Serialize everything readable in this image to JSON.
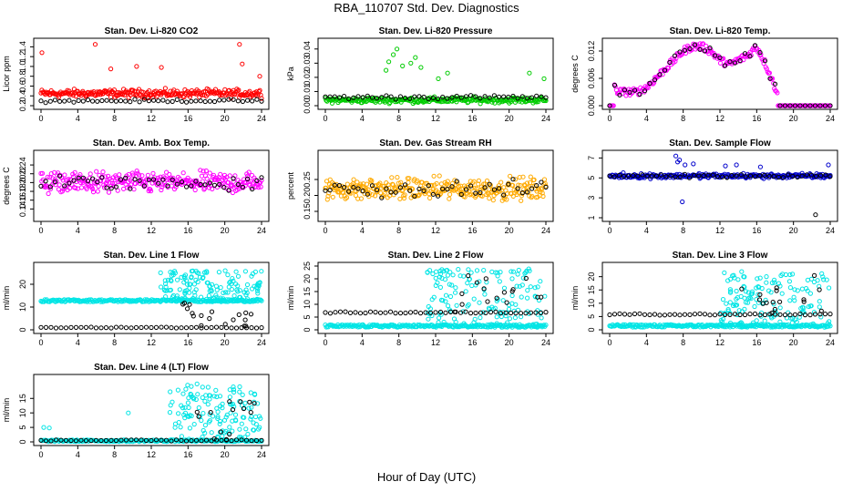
{
  "title": "RBA_110707  Std. Dev. Diagnostics",
  "xlabel": "Hour of Day (UTC)",
  "colors": {
    "red": "#ff0000",
    "green": "#00cc00",
    "magenta": "#ff00ff",
    "orange": "#ffaa00",
    "blue": "#0000cc",
    "cyan": "#00e5e5",
    "black": "#000000"
  },
  "chart_data": [
    {
      "type": "scatter",
      "title": "Stan. Dev. Li-820 CO2",
      "ylabel": "Licor ppm",
      "xlim": [
        0,
        24
      ],
      "ylim": [
        0.2,
        1.5
      ],
      "xticks": [
        "0",
        "4",
        "8",
        "12",
        "16",
        "20",
        "24"
      ],
      "yticks": [
        "0.2",
        "0.4",
        "0.6",
        "0.8",
        "1.0",
        "1.2",
        "1.4"
      ],
      "series": [
        {
          "name": "all",
          "color": "#ff0000",
          "model": "noisy",
          "base": 0.45,
          "spread": 0.12,
          "n": 260,
          "x": [
            0.1,
            5.9,
            7.6,
            10.4,
            13.1,
            21.6,
            21.9,
            23.8
          ],
          "y": [
            1.28,
            1.45,
            0.95,
            1.0,
            0.98,
            1.45,
            1.05,
            0.8
          ]
        },
        {
          "name": "hourly",
          "color": "#000000",
          "model": "noisy",
          "base": 0.3,
          "spread": 0.04,
          "n": 48
        }
      ]
    },
    {
      "type": "scatter",
      "title": "Stan. Dev. Li-820 Pressure",
      "ylabel": "kPa",
      "xlim": [
        0,
        24
      ],
      "ylim": [
        0,
        0.045
      ],
      "xticks": [
        "0",
        "4",
        "8",
        "12",
        "16",
        "20",
        "24"
      ],
      "yticks": [
        "0.00",
        "0.01",
        "0.02",
        "0.03",
        "0.04"
      ],
      "series": [
        {
          "name": "all",
          "color": "#00cc00",
          "model": "noisy",
          "base": 0.004,
          "spread": 0.003,
          "n": 260,
          "x": [
            6.6,
            6.9,
            7.4,
            7.8,
            8.4,
            9.3,
            9.8,
            10.4,
            12.3,
            13.3,
            22.2,
            23.8
          ],
          "y": [
            0.025,
            0.031,
            0.036,
            0.04,
            0.028,
            0.03,
            0.034,
            0.027,
            0.019,
            0.023,
            0.023,
            0.019
          ]
        },
        {
          "name": "hourly",
          "color": "#000000",
          "model": "noisy",
          "base": 0.006,
          "spread": 0.002,
          "n": 48
        }
      ]
    },
    {
      "type": "scatter",
      "title": "Stan. Dev. Li-820 Temp.",
      "ylabel": "degrees C",
      "xlim": [
        0,
        24
      ],
      "ylim": [
        0,
        0.014
      ],
      "xticks": [
        "0",
        "4",
        "8",
        "12",
        "16",
        "20",
        "24"
      ],
      "yticks": [
        "0.000",
        "0.006",
        "0.012"
      ],
      "series": [
        {
          "name": "all",
          "color": "#ff00ff",
          "model": "hump",
          "n": 230,
          "x": [
            0.5,
            1.0,
            2.0,
            3.0,
            4.0,
            5.0,
            6.0,
            7.0,
            8.0,
            9.0,
            10.0,
            11.0,
            12.0,
            13.0,
            14.0,
            15.0,
            16.0,
            17.0,
            17.6,
            18.0,
            18.3
          ],
          "y": [
            0.004,
            0.003,
            0.003,
            0.003,
            0.004,
            0.006,
            0.008,
            0.01,
            0.012,
            0.013,
            0.013,
            0.012,
            0.01,
            0.009,
            0.01,
            0.011,
            0.013,
            0.009,
            0.006,
            0.004,
            0.003
          ]
        },
        {
          "name": "hourly",
          "color": "#000000",
          "model": "hump",
          "n": 45
        }
      ]
    },
    {
      "type": "scatter",
      "title": "Stan. Dev. Amb. Box Temp.",
      "ylabel": "degrees C",
      "xlim": [
        0,
        24
      ],
      "ylim": [
        0.12,
        0.265
      ],
      "xticks": [
        "0",
        "4",
        "8",
        "12",
        "16",
        "20",
        "24"
      ],
      "yticks": [
        "0.14",
        "0.16",
        "0.18",
        "0.20",
        "0.22",
        "0.24"
      ],
      "series": [
        {
          "name": "all",
          "color": "#ff00ff",
          "model": "noisy",
          "base": 0.2,
          "spread": 0.035,
          "n": 300
        },
        {
          "name": "hourly",
          "color": "#000000",
          "model": "noisy",
          "base": 0.2,
          "spread": 0.025,
          "n": 48
        }
      ]
    },
    {
      "type": "scatter",
      "title": "Stan. Dev. Gas Stream RH",
      "ylabel": "percent",
      "xlim": [
        0,
        24
      ],
      "ylim": [
        0.13,
        0.33
      ],
      "xticks": [
        "0",
        "4",
        "8",
        "12",
        "16",
        "20",
        "24"
      ],
      "yticks": [
        "0.15",
        "0.20",
        "0.25"
      ],
      "series": [
        {
          "name": "all",
          "color": "#ffaa00",
          "model": "noisy",
          "base": 0.22,
          "spread": 0.05,
          "n": 320
        },
        {
          "name": "hourly",
          "color": "#000000",
          "model": "noisy",
          "base": 0.22,
          "spread": 0.035,
          "n": 48
        }
      ]
    },
    {
      "type": "scatter",
      "title": "Stan. Dev. Sample Flow",
      "ylabel": "",
      "xlim": [
        0,
        24
      ],
      "ylim": [
        1,
        7.4
      ],
      "xticks": [
        "0",
        "4",
        "8",
        "12",
        "16",
        "20",
        "24"
      ],
      "yticks": [
        "1",
        "3",
        "5",
        "7"
      ],
      "series": [
        {
          "name": "all",
          "color": "#0000cc",
          "model": "noisy",
          "base": 5.2,
          "spread": 0.35,
          "n": 260,
          "x": [
            7.2,
            7.4,
            7.6,
            8.2,
            9.1,
            12.6,
            13.8,
            16.4,
            23.8,
            7.9
          ],
          "y": [
            7.2,
            6.6,
            6.8,
            6.3,
            6.4,
            6.2,
            6.3,
            6.1,
            6.3,
            2.6
          ]
        },
        {
          "name": "hourly",
          "color": "#000000",
          "model": "noisy",
          "base": 5.2,
          "spread": 0.25,
          "n": 48,
          "x": [
            22.4
          ],
          "y": [
            1.3
          ]
        }
      ]
    },
    {
      "type": "scatter",
      "title": "Stan. Dev. Line 1 Flow",
      "ylabel": "ml/min",
      "xlim": [
        0,
        24
      ],
      "ylim": [
        0,
        28
      ],
      "xticks": [
        "0",
        "4",
        "8",
        "12",
        "16",
        "20",
        "24"
      ],
      "yticks": [
        "0",
        "10",
        "20"
      ],
      "series": [
        {
          "name": "all",
          "color": "#00e5e5",
          "model": "band",
          "base": 12.8,
          "spread": 0.5,
          "n": 230,
          "scatterFrom": 13,
          "scatterN": 140,
          "scatterMax": 26
        },
        {
          "name": "hourly",
          "color": "#000000",
          "model": "band",
          "base": 1.0,
          "spread": 0.2,
          "n": 45,
          "scatterFrom": 14,
          "scatterN": 18,
          "scatterMax": 12
        }
      ]
    },
    {
      "type": "scatter",
      "title": "Stan. Dev. Line 2 Flow",
      "ylabel": "ml/min",
      "xlim": [
        0,
        24
      ],
      "ylim": [
        0,
        25
      ],
      "xticks": [
        "0",
        "4",
        "8",
        "12",
        "16",
        "20",
        "24"
      ],
      "yticks": [
        "0",
        "5",
        "10",
        "15",
        "20",
        "25"
      ],
      "series": [
        {
          "name": "all",
          "color": "#00e5e5",
          "model": "band",
          "base": 1.5,
          "spread": 0.5,
          "n": 230,
          "scatterFrom": 11,
          "scatterN": 150,
          "scatterMax": 24
        },
        {
          "name": "hourly",
          "color": "#000000",
          "model": "band",
          "base": 6.8,
          "spread": 0.3,
          "n": 45,
          "scatterFrom": 14,
          "scatterN": 16,
          "scatterMax": 23
        }
      ]
    },
    {
      "type": "scatter",
      "title": "Stan. Dev. Line 3 Flow",
      "ylabel": "ml/min",
      "xlim": [
        0,
        24
      ],
      "ylim": [
        0,
        24
      ],
      "xticks": [
        "0",
        "4",
        "8",
        "12",
        "16",
        "20",
        "24"
      ],
      "yticks": [
        "0",
        "5",
        "10",
        "15",
        "20"
      ],
      "series": [
        {
          "name": "all",
          "color": "#00e5e5",
          "model": "band",
          "base": 1.5,
          "spread": 0.5,
          "n": 230,
          "scatterFrom": 12,
          "scatterN": 150,
          "scatterMax": 22
        },
        {
          "name": "hourly",
          "color": "#000000",
          "model": "band",
          "base": 5.8,
          "spread": 0.3,
          "n": 45,
          "scatterFrom": 14,
          "scatterN": 16,
          "scatterMax": 21
        }
      ]
    },
    {
      "type": "scatter",
      "title": "Stan. Dev. Line 4 (LT) Flow",
      "ylabel": "ml/min",
      "xlim": [
        0,
        24
      ],
      "ylim": [
        0,
        22
      ],
      "xticks": [
        "0",
        "4",
        "8",
        "12",
        "16",
        "20",
        "24"
      ],
      "yticks": [
        "0",
        "5",
        "10",
        "15"
      ],
      "series": [
        {
          "name": "all",
          "color": "#00e5e5",
          "model": "band",
          "base": 0.4,
          "spread": 0.3,
          "n": 210,
          "scatterFrom": 14,
          "scatterN": 140,
          "scatterMax": 20,
          "x": [
            0.3,
            0.9,
            9.5
          ],
          "y": [
            5,
            4.8,
            10
          ]
        },
        {
          "name": "hourly",
          "color": "#000000",
          "model": "band",
          "base": 0.5,
          "spread": 0.2,
          "n": 45,
          "scatterFrom": 16,
          "scatterN": 14,
          "scatterMax": 14
        }
      ]
    }
  ]
}
